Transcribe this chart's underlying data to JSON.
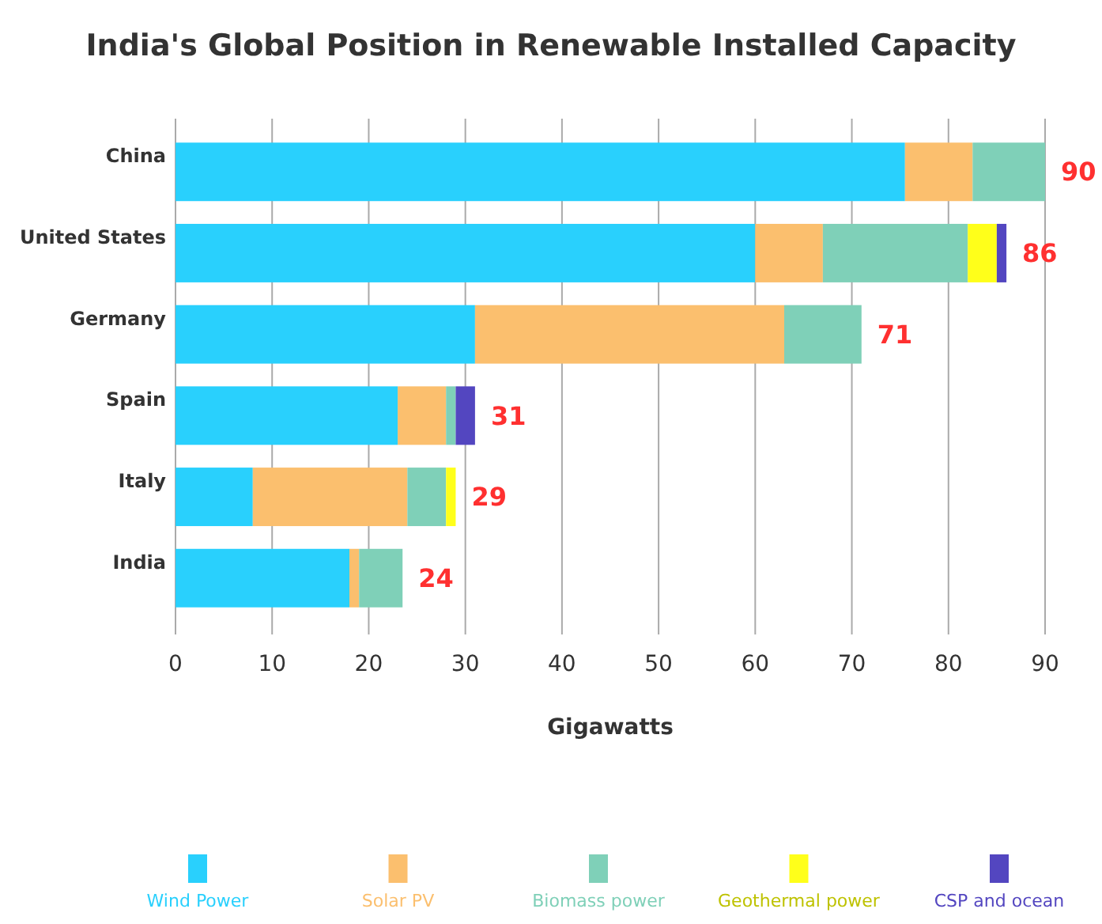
{
  "chart_data": {
    "type": "bar",
    "orientation": "horizontal",
    "stacked": true,
    "title": "India's Global Position in Renewable Installed Capacity",
    "xlabel": "Gigawatts",
    "categories": [
      "China",
      "United States",
      "Germany",
      "Spain",
      "Italy",
      "India"
    ],
    "series": [
      {
        "name": "Wind Power",
        "color": "#29d0fd",
        "values": [
          75.5,
          60,
          31,
          23,
          8,
          18
        ]
      },
      {
        "name": "Solar PV",
        "color": "#fbbf6e",
        "values": [
          7,
          7,
          32,
          5,
          16,
          1
        ]
      },
      {
        "name": "Biomass power",
        "color": "#7fd0b8",
        "values": [
          7.5,
          15,
          8,
          1,
          4,
          4.5
        ]
      },
      {
        "name": "Geothermal power",
        "color": "#ffff1a",
        "values": [
          null,
          3,
          null,
          null,
          1,
          null
        ]
      },
      {
        "name": "CSP and ocean",
        "color": "#5346c0",
        "values": [
          null,
          1,
          null,
          2,
          null,
          null
        ]
      }
    ],
    "totals": [
      "90",
      "86",
      "71",
      "31",
      "29",
      "24"
    ],
    "xlim": [
      0,
      90
    ],
    "xticks": [
      0,
      10,
      20,
      30,
      40,
      50,
      60,
      70,
      80,
      90
    ],
    "grid": "x",
    "legend": "bottom"
  }
}
